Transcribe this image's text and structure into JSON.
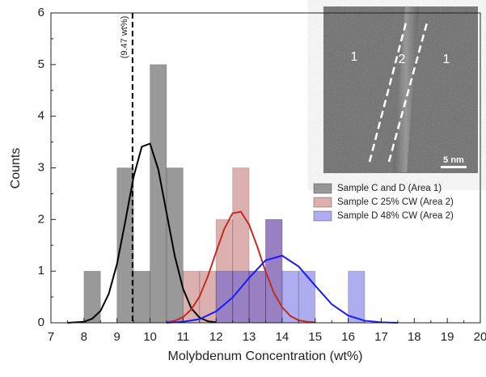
{
  "chart_data": {
    "type": "histogram",
    "xlabel": "Molybdenum Concentration (wt%)",
    "ylabel": "Counts",
    "xlim": [
      7,
      20
    ],
    "ylim": [
      0,
      6
    ],
    "xticks": [
      7,
      8,
      9,
      10,
      11,
      12,
      13,
      14,
      15,
      16,
      17,
      18,
      19,
      20
    ],
    "yticks": [
      0,
      1,
      2,
      3,
      4,
      5,
      6
    ],
    "legend": "right",
    "series": [
      {
        "name": "Sample C and D (Area 1)",
        "color": "rgba(110,110,110,0.7)",
        "bins": [
          8,
          8.5,
          9,
          9.5,
          10,
          10.5,
          11
        ],
        "values": [
          1,
          0,
          3,
          1,
          5,
          3
        ]
      },
      {
        "name": "Sample C 25% CW (Area 2)",
        "color": "rgba(180,80,80,0.45)",
        "bins": [
          11,
          11.5,
          12,
          12.5,
          13,
          13.5,
          14
        ],
        "values": [
          1,
          1,
          2,
          3,
          1,
          2
        ]
      },
      {
        "name": "Sample D 48% CW (Area 2)",
        "color": "rgba(70,70,220,0.45)",
        "bins": [
          12,
          12.5,
          13,
          13.5,
          14,
          14.5,
          15,
          15.5,
          16,
          16.5
        ],
        "values": [
          1,
          1,
          1,
          2,
          1,
          1,
          0,
          0,
          1
        ]
      }
    ],
    "curves": [
      {
        "color": "#000000",
        "x": [
          7.5,
          7.75,
          8,
          8.25,
          8.5,
          8.75,
          9,
          9.25,
          9.5,
          9.75,
          10,
          10.25,
          10.5,
          10.75,
          11,
          11.25,
          11.5,
          11.75,
          12
        ],
        "values": [
          0,
          0.01,
          0.02,
          0.08,
          0.23,
          0.56,
          1.14,
          1.96,
          2.82,
          3.41,
          3.47,
          2.97,
          2.13,
          1.29,
          0.66,
          0.28,
          0.1,
          0.03,
          0.01
        ]
      },
      {
        "color": "#c42a1e",
        "x": [
          10.5,
          10.75,
          11,
          11.25,
          11.5,
          11.75,
          12,
          12.25,
          12.5,
          12.75,
          13,
          13.25,
          13.5,
          13.75,
          14,
          14.25,
          14.5,
          14.75,
          15
        ],
        "values": [
          0.01,
          0.04,
          0.11,
          0.26,
          0.51,
          0.9,
          1.37,
          1.82,
          2.12,
          2.15,
          1.9,
          1.47,
          0.99,
          0.58,
          0.3,
          0.13,
          0.05,
          0.02,
          0.01
        ]
      },
      {
        "color": "#1a1aff",
        "x": [
          10.5,
          11,
          11.5,
          12,
          12.5,
          13,
          13.5,
          14,
          14.5,
          15,
          15.5,
          16,
          16.5,
          17,
          17.5
        ],
        "values": [
          0,
          0.02,
          0.07,
          0.22,
          0.49,
          0.87,
          1.21,
          1.3,
          1.09,
          0.72,
          0.36,
          0.14,
          0.04,
          0.01,
          0
        ]
      }
    ],
    "reference_line": {
      "x": 9.47,
      "label": "(9.47 wt%)"
    },
    "inset": {
      "labels": [
        "1",
        "2",
        "1"
      ],
      "scale_bar": "5 nm"
    }
  }
}
